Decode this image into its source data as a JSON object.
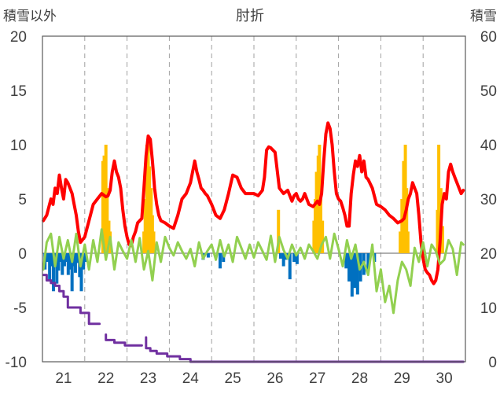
{
  "chart_data": {
    "type": "line",
    "title": "肘折",
    "ylabel_left": "積雪以外",
    "ylabel_right": "積雪",
    "ylim_left": [
      -10,
      20
    ],
    "ylim_right": [
      0,
      60
    ],
    "yticks_left": [
      "20",
      "15",
      "10",
      "5",
      "0",
      "-5",
      "-10"
    ],
    "yticks_right": [
      "60",
      "50",
      "40",
      "30",
      "20",
      "10",
      "0"
    ],
    "xlim": [
      20.5,
      30.5
    ],
    "x_ticks": [
      {
        "x": 21,
        "label": "21"
      },
      {
        "x": 22,
        "label": "22"
      },
      {
        "x": 23,
        "label": "23"
      },
      {
        "x": 24,
        "label": "24"
      },
      {
        "x": 25,
        "label": "25"
      },
      {
        "x": 26,
        "label": "26"
      },
      {
        "x": 27,
        "label": "27"
      },
      {
        "x": 28,
        "label": "28"
      },
      {
        "x": 29,
        "label": "29"
      },
      {
        "x": 30,
        "label": "30"
      }
    ],
    "gridlines": "dashed vertical at day boundaries",
    "colors": {
      "red": "#ff0000",
      "green": "#92d050",
      "purple": "#7030a0",
      "orange": "#ffc000",
      "blue": "#0070c0",
      "axis": "#595959",
      "grid": "#a0a0a0",
      "zero": "#808080"
    },
    "series": [
      {
        "color": "red",
        "kind": "line",
        "axis": "left",
        "x": [
          20.52,
          20.6,
          20.7,
          20.75,
          20.8,
          20.85,
          20.9,
          20.95,
          21.0,
          21.05,
          21.1,
          21.15,
          21.2,
          21.25,
          21.3,
          21.35,
          21.4,
          21.5,
          21.6,
          21.7,
          21.8,
          21.9,
          22.0,
          22.05,
          22.1,
          22.15,
          22.2,
          22.25,
          22.3,
          22.35,
          22.4,
          22.45,
          22.5,
          22.55,
          22.6,
          22.65,
          22.7,
          22.75,
          22.8,
          22.85,
          22.9,
          22.95,
          23.0,
          23.05,
          23.1,
          23.15,
          23.2,
          23.25,
          23.3,
          23.4,
          23.5,
          23.6,
          23.7,
          23.8,
          23.9,
          24.0,
          24.05,
          24.1,
          24.15,
          24.2,
          24.25,
          24.3,
          24.35,
          24.4,
          24.5,
          24.6,
          24.7,
          24.8,
          24.9,
          25.0,
          25.1,
          25.2,
          25.3,
          25.4,
          25.5,
          25.6,
          25.7,
          25.75,
          25.8,
          25.85,
          25.9,
          26.0,
          26.1,
          26.2,
          26.3,
          26.4,
          26.45,
          26.5,
          26.55,
          26.6,
          26.65,
          26.7,
          26.8,
          26.9,
          27.0,
          27.05,
          27.1,
          27.15,
          27.2,
          27.25,
          27.3,
          27.35,
          27.4,
          27.45,
          27.5,
          27.55,
          27.6,
          27.65,
          27.7,
          27.75,
          27.8,
          27.85,
          27.9,
          27.95,
          28.0,
          28.05,
          28.1,
          28.15,
          28.2,
          28.3,
          28.4,
          28.5,
          28.6,
          28.7,
          28.8,
          28.9,
          29.0,
          29.05,
          29.1,
          29.15,
          29.2,
          29.25,
          29.3,
          29.35,
          29.4,
          29.45,
          29.5,
          29.55,
          29.6,
          29.65,
          29.7,
          29.75,
          29.8,
          29.85,
          29.9,
          29.95,
          30.0,
          30.05,
          30.1,
          30.15,
          30.2,
          30.25,
          30.3,
          30.35,
          30.4,
          30.45
        ],
        "y": [
          3.0,
          3.5,
          5.0,
          4.5,
          6.0,
          5.5,
          7.2,
          6.0,
          5.0,
          6.8,
          6.5,
          6.0,
          5.5,
          4.5,
          3.5,
          2.0,
          1.0,
          1.5,
          3.0,
          4.5,
          5.0,
          5.5,
          5.2,
          5.3,
          5.8,
          7.5,
          8.5,
          7.5,
          7.0,
          6.0,
          4.0,
          2.5,
          1.5,
          0.8,
          0.7,
          1.5,
          2.0,
          2.8,
          3.0,
          3.2,
          6.0,
          9.0,
          10.8,
          10.5,
          8.5,
          6.0,
          4.5,
          3.5,
          3.0,
          2.8,
          2.5,
          2.3,
          3.5,
          5.0,
          5.5,
          6.5,
          7.5,
          8.5,
          7.5,
          6.8,
          6.0,
          5.8,
          5.5,
          5.3,
          4.5,
          3.5,
          3.2,
          4.0,
          5.5,
          7.2,
          7.0,
          6.0,
          5.5,
          5.5,
          5.5,
          5.3,
          5.8,
          7.0,
          9.5,
          9.8,
          9.7,
          9.3,
          6.0,
          5.5,
          5.8,
          4.8,
          5.3,
          5.5,
          5.0,
          4.8,
          5.0,
          5.5,
          4.5,
          4.3,
          4.8,
          4.5,
          5.5,
          8.5,
          11.0,
          12.0,
          11.5,
          10.0,
          7.5,
          5.5,
          5.0,
          4.8,
          4.2,
          3.5,
          2.5,
          2.5,
          5.5,
          7.2,
          8.5,
          8.0,
          9.0,
          7.5,
          8.5,
          7.0,
          6.8,
          6.0,
          4.5,
          4.3,
          4.0,
          3.5,
          3.2,
          2.8,
          3.0,
          3.2,
          4.0,
          5.0,
          5.5,
          6.5,
          6.0,
          5.5,
          3.5,
          1.0,
          -0.5,
          -1.5,
          -1.8,
          -2.0,
          -2.5,
          -2.8,
          -2.5,
          -1.5,
          1.0,
          4.5,
          5.5,
          5.0,
          7.5,
          8.2,
          7.5,
          7.0,
          6.5,
          6.0,
          5.5,
          5.8
        ]
      },
      {
        "color": "green",
        "kind": "line",
        "axis": "left",
        "x": [
          20.52,
          20.6,
          20.7,
          20.8,
          20.9,
          21.0,
          21.1,
          21.2,
          21.3,
          21.4,
          21.5,
          21.6,
          21.7,
          21.8,
          21.9,
          22.0,
          22.1,
          22.2,
          22.3,
          22.4,
          22.5,
          22.6,
          22.7,
          22.8,
          22.9,
          23.0,
          23.1,
          23.2,
          23.3,
          23.4,
          23.5,
          23.6,
          23.7,
          23.8,
          23.9,
          24.0,
          24.1,
          24.2,
          24.3,
          24.4,
          24.5,
          24.6,
          24.7,
          24.8,
          24.9,
          25.0,
          25.1,
          25.2,
          25.3,
          25.4,
          25.5,
          25.6,
          25.7,
          25.8,
          25.9,
          26.0,
          26.1,
          26.2,
          26.3,
          26.4,
          26.5,
          26.6,
          26.7,
          26.8,
          26.9,
          27.0,
          27.1,
          27.2,
          27.3,
          27.4,
          27.5,
          27.6,
          27.7,
          27.8,
          27.9,
          28.0,
          28.1,
          28.2,
          28.3,
          28.4,
          28.5,
          28.6,
          28.7,
          28.8,
          28.9,
          29.0,
          29.1,
          29.2,
          29.3,
          29.4,
          29.5,
          29.6,
          29.7,
          29.8,
          29.9,
          30.0,
          30.1,
          30.2,
          30.3,
          30.4,
          30.45
        ],
        "y": [
          -1.5,
          1.0,
          1.8,
          -1.2,
          1.5,
          -0.5,
          1.2,
          -0.8,
          1.8,
          -1.2,
          0.8,
          -1.5,
          1.2,
          -0.8,
          2.2,
          -0.6,
          1.5,
          -1.5,
          1.0,
          0.2,
          -0.5,
          1.2,
          -0.8,
          1.4,
          -1.5,
          0.2,
          -2.5,
          1.0,
          -0.8,
          1.5,
          0.5,
          -0.2,
          1.0,
          0.2,
          -0.5,
          0.4,
          -1.2,
          1.0,
          -0.5,
          0.2,
          0.8,
          -0.6,
          1.2,
          -0.3,
          0.8,
          -0.8,
          1.5,
          0.5,
          -0.5,
          0.8,
          -0.4,
          1.0,
          0.2,
          -0.6,
          1.6,
          -0.8,
          1.5,
          0.3,
          -0.5,
          0.8,
          -0.2,
          0.5,
          -0.5,
          0.8,
          0.2,
          -0.5,
          0.8,
          1.5,
          -0.5,
          1.8,
          0.4,
          -1.2,
          1.2,
          -0.5,
          0.8,
          -1.5,
          -0.8,
          -2.0,
          0.8,
          -3.5,
          -1.5,
          -4.5,
          -3.0,
          -5.5,
          -2.5,
          -0.8,
          -1.5,
          -3.0,
          0.5,
          -0.8,
          1.0,
          -1.2,
          0.8,
          0.2,
          -1.0,
          -0.6,
          1.2,
          0.4,
          -2.0,
          1.0,
          0.8
        ]
      },
      {
        "color": "purple",
        "kind": "step",
        "axis": "right",
        "segments": [
          {
            "x": [
              20.52,
              20.6,
              20.6,
              20.7,
              20.7,
              20.8,
              20.8,
              20.9,
              20.9,
              21.0,
              21.0,
              21.1,
              21.1,
              21.25,
              21.25,
              21.4,
              21.4,
              21.6,
              21.6,
              21.85
            ],
            "y": [
              16,
              16,
              15,
              15,
              14.5,
              14.5,
              14,
              14,
              13,
              13,
              12,
              12,
              10,
              10,
              10,
              10,
              9,
              9,
              7,
              7
            ]
          },
          {
            "x": [
              22.0,
              22.0,
              22.2,
              22.2,
              22.45,
              22.45,
              22.85
            ],
            "y": [
              5,
              4,
              4,
              3.5,
              3.5,
              3,
              3
            ]
          },
          {
            "x": [
              22.95,
              22.95,
              23.05,
              23.05,
              23.2,
              23.2,
              23.45,
              23.45,
              23.75,
              23.75,
              24.0,
              24.0,
              30.45
            ],
            "y": [
              4.5,
              2.5,
              2.5,
              2,
              2,
              1.5,
              1.5,
              1,
              1,
              0.5,
              0.5,
              0,
              0
            ]
          }
        ]
      },
      {
        "color": "orange",
        "kind": "bar",
        "axis": "left",
        "x": [
          21.93,
          21.96,
          22.0,
          22.03,
          22.07,
          22.1,
          22.9,
          22.93,
          22.97,
          23.0,
          23.03,
          23.07,
          23.1,
          23.13,
          26.08,
          26.92,
          26.95,
          26.98,
          27.02,
          27.05,
          27.08,
          27.12,
          28.96,
          29.0,
          29.04,
          29.08,
          29.11,
          29.14,
          29.84,
          29.87,
          29.92,
          29.96
        ],
        "y": [
          8.5,
          9.0,
          10.0,
          6.0,
          3.0,
          2.0,
          2.0,
          5.0,
          10.0,
          10.5,
          8.0,
          6.0,
          3.5,
          2.0,
          4.0,
          3.0,
          5.0,
          7.5,
          9.0,
          10.0,
          6.5,
          3.0,
          2.0,
          5.0,
          8.5,
          10.0,
          6.0,
          2.0,
          4.0,
          10.0,
          6.0,
          2.5
        ]
      },
      {
        "color": "blue",
        "kind": "bar",
        "axis": "left",
        "x": [
          20.56,
          20.62,
          20.67,
          20.71,
          20.76,
          20.8,
          20.84,
          20.88,
          20.92,
          20.97,
          21.02,
          21.07,
          21.11,
          21.16,
          21.2,
          21.24,
          21.28,
          21.33,
          21.38,
          21.42,
          21.47,
          21.52,
          24.3,
          24.42,
          24.7,
          24.78,
          26.13,
          26.2,
          26.27,
          26.35,
          26.45,
          26.52,
          27.68,
          27.75,
          27.82,
          27.88,
          27.95,
          28.02,
          28.1,
          28.2,
          28.35
        ],
        "y": [
          -1.5,
          -0.8,
          -2.5,
          -1.2,
          -3.5,
          -0.8,
          -2.8,
          -1.6,
          -0.8,
          -2.0,
          -1.2,
          -0.8,
          -2.0,
          -1.5,
          -3.5,
          -1.2,
          -1.8,
          -0.9,
          -2.2,
          -3.5,
          -1.5,
          -0.8,
          -0.6,
          -0.4,
          -1.4,
          -0.8,
          -0.5,
          -1.2,
          -0.6,
          -2.4,
          -0.8,
          -1.0,
          -1.4,
          -2.6,
          -4.0,
          -3.2,
          -3.8,
          -2.6,
          -2.0,
          -1.6,
          -0.8
        ]
      }
    ]
  }
}
